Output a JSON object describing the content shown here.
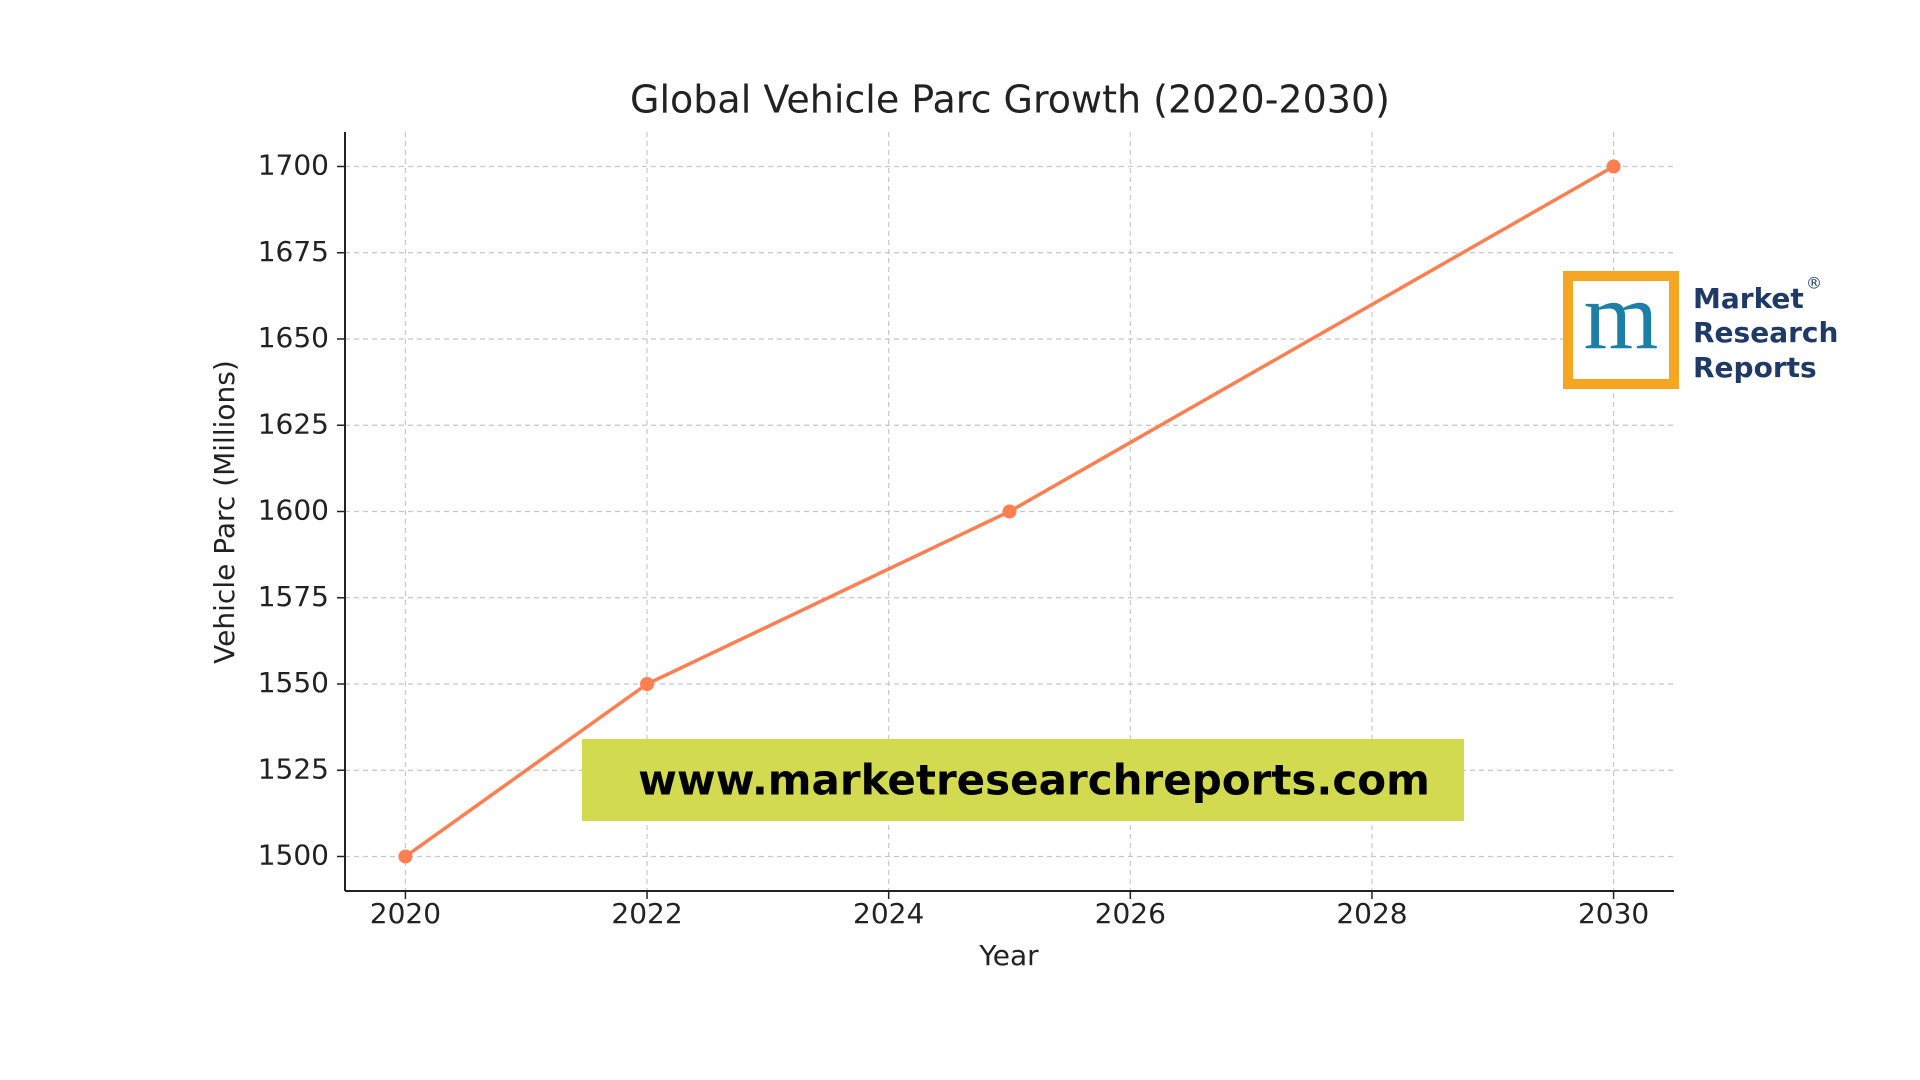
{
  "chart_data": {
    "type": "line",
    "title": "Global Vehicle Parc Growth (2020-2030)",
    "x_label": "Year",
    "y_label": "Vehicle Parc (Millions)",
    "x": [
      2020,
      2022,
      2025,
      2030
    ],
    "series": [
      {
        "name": "Vehicle Parc",
        "color": "#ff7f50",
        "values": [
          1500,
          1550,
          1600,
          1700
        ]
      }
    ],
    "xlim": [
      2019.5,
      2030.5
    ],
    "xticks": [
      2020,
      2022,
      2024,
      2026,
      2028,
      2030
    ],
    "ylim": [
      1490,
      1710
    ],
    "yticks": [
      1500,
      1525,
      1550,
      1575,
      1600,
      1625,
      1650,
      1675,
      1700
    ],
    "grid": true
  },
  "watermark": "www.marketresearchreports.com",
  "logo": {
    "mark": "m",
    "lines": [
      "Market",
      "Research",
      "Reports"
    ],
    "registered": "®"
  }
}
